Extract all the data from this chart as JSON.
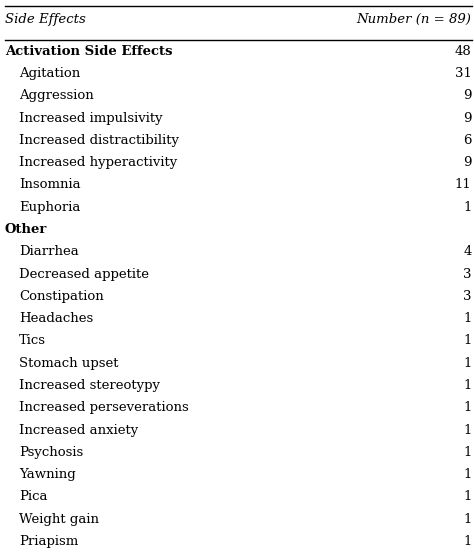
{
  "col_header_left": "Side Effects",
  "col_header_right": "Number (n = 89)",
  "rows": [
    {
      "label": "Activation Side Effects",
      "value": "48",
      "indent": 0,
      "bold": true
    },
    {
      "label": "Agitation",
      "value": "31",
      "indent": 1,
      "bold": false
    },
    {
      "label": "Aggression",
      "value": "9",
      "indent": 1,
      "bold": false
    },
    {
      "label": "Increased impulsivity",
      "value": "9",
      "indent": 1,
      "bold": false
    },
    {
      "label": "Increased distractibility",
      "value": "6",
      "indent": 1,
      "bold": false
    },
    {
      "label": "Increased hyperactivity",
      "value": "9",
      "indent": 1,
      "bold": false
    },
    {
      "label": "Insomnia",
      "value": "11",
      "indent": 1,
      "bold": false
    },
    {
      "label": "Euphoria",
      "value": "1",
      "indent": 1,
      "bold": false
    },
    {
      "label": "Other",
      "value": "",
      "indent": 0,
      "bold": true
    },
    {
      "label": "Diarrhea",
      "value": "4",
      "indent": 1,
      "bold": false
    },
    {
      "label": "Decreased appetite",
      "value": "3",
      "indent": 1,
      "bold": false
    },
    {
      "label": "Constipation",
      "value": "3",
      "indent": 1,
      "bold": false
    },
    {
      "label": "Headaches",
      "value": "1",
      "indent": 1,
      "bold": false
    },
    {
      "label": "Tics",
      "value": "1",
      "indent": 1,
      "bold": false
    },
    {
      "label": "Stomach upset",
      "value": "1",
      "indent": 1,
      "bold": false
    },
    {
      "label": "Increased stereotypy",
      "value": "1",
      "indent": 1,
      "bold": false
    },
    {
      "label": "Increased perseverations",
      "value": "1",
      "indent": 1,
      "bold": false
    },
    {
      "label": "Increased anxiety",
      "value": "1",
      "indent": 1,
      "bold": false
    },
    {
      "label": "Psychosis",
      "value": "1",
      "indent": 1,
      "bold": false
    },
    {
      "label": "Yawning",
      "value": "1",
      "indent": 1,
      "bold": false
    },
    {
      "label": "Pica",
      "value": "1",
      "indent": 1,
      "bold": false
    },
    {
      "label": "Weight gain",
      "value": "1",
      "indent": 1,
      "bold": false
    },
    {
      "label": "Priapism",
      "value": "1",
      "indent": 1,
      "bold": false
    }
  ],
  "background_color": "#ffffff",
  "text_color": "#000000",
  "header_line_color": "#000000",
  "font_size": 9.5,
  "header_font_size": 9.5,
  "indent_size": 0.03,
  "fig_width": 4.74,
  "fig_height": 5.57
}
